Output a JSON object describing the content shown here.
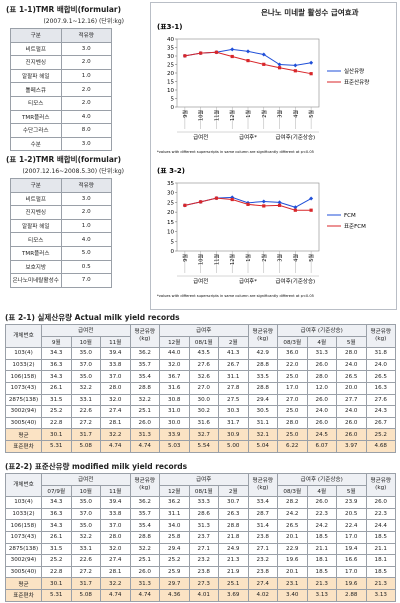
{
  "formula_tables": [
    {
      "title": "(표 1-1)TMR 배합비(formular)",
      "subtitle": "(2007.9.1~12.16) (단위:kg)",
      "header": [
        "구분",
        "적유량"
      ],
      "rows": [
        [
          "비트펄프",
          "3.0"
        ],
        [
          "진지벤싱",
          "2.0"
        ],
        [
          "알팔파 헤일",
          "1.0"
        ],
        [
          "톨페스큐",
          "2.0"
        ],
        [
          "티모스",
          "2.0"
        ],
        [
          "TMR플러스",
          "4.0"
        ],
        [
          "수단그라스",
          "8.0"
        ],
        [
          "수분",
          "3.0"
        ]
      ]
    },
    {
      "title": "(표 1-2)TMR 배합비(formular)",
      "subtitle": "(2007.12.16~2008.5.30) (단위:kg)",
      "header": [
        "구분",
        "적유량"
      ],
      "rows": [
        [
          "비트펄프",
          "3.0"
        ],
        [
          "진지벤싱",
          "2.0"
        ],
        [
          "알팔파 헤일",
          "1.0"
        ],
        [
          "티모스",
          "4.0"
        ],
        [
          "TMR플러스",
          "5.0"
        ],
        [
          "보호지방",
          "0.5"
        ],
        [
          "은나노미네랄활성수",
          "7.0"
        ]
      ]
    }
  ],
  "panel_title": "은나노 미네랄 활성수 급여효과",
  "chart_data": [
    {
      "type": "line",
      "title": "(표3-1)",
      "categories": [
        "9월",
        "10월",
        "11월",
        "12월",
        "1월",
        "2월",
        "3월",
        "4월",
        "5월"
      ],
      "groups": [
        "급여전",
        "급여후*",
        "급여후(기준상승)"
      ],
      "footnote": "*values with different superscripts in same column are significantly different at p<0.05",
      "ylim": [
        0,
        40
      ],
      "yticks": [
        0,
        5,
        10,
        15,
        20,
        25,
        30,
        35,
        40
      ],
      "series": [
        {
          "name": "실산유량",
          "color": "#1f4fd8",
          "values": [
            30.1,
            31.7,
            32.2,
            33.9,
            32.7,
            30.9,
            25.0,
            24.5,
            26.0
          ]
        },
        {
          "name": "표준산유량",
          "color": "#d8262a",
          "values": [
            30.1,
            31.7,
            32.2,
            29.7,
            27.3,
            25.1,
            23.1,
            21.3,
            19.6
          ]
        }
      ]
    },
    {
      "type": "line",
      "title": "(표 3-2)",
      "categories": [
        "9월",
        "10월",
        "11월",
        "12월",
        "1월",
        "2월",
        "3월",
        "4월",
        "5월"
      ],
      "groups": [
        "급여전",
        "급여후*",
        "급여후(기준상승)"
      ],
      "footnote": "*values with different superscripts in same column are significantly different at p<0.05",
      "ylim": [
        0,
        35
      ],
      "yticks": [
        0,
        5,
        10,
        15,
        20,
        25,
        30,
        35
      ],
      "series": [
        {
          "name": "FCM",
          "color": "#1f4fd8",
          "values": [
            23.5,
            25.3,
            27.2,
            27.6,
            24.8,
            25.5,
            25.0,
            22.5,
            27.0
          ]
        },
        {
          "name": "표준FCM",
          "color": "#d8262a",
          "values": [
            23.5,
            25.3,
            27.2,
            26.5,
            24.0,
            23.2,
            23.5,
            21.0,
            21.0
          ]
        }
      ]
    }
  ],
  "yield_tables": [
    {
      "title": "(표 2-1) 실제산유량 Actual milk yield records",
      "group_header": [
        "개체번호",
        "급여전",
        "평균유량 (kg)",
        "급여후",
        "평균유량 (kg)",
        "급여후 (기준상승)",
        "평균유량 (kg)"
      ],
      "month_header": [
        "9월",
        "10월",
        "11월",
        "12월",
        "08/1월",
        "2월",
        "08/3월",
        "4월",
        "5월"
      ],
      "rows": [
        [
          "103(4)",
          "34.3",
          "35.0",
          "39.4",
          "36.2",
          "44.0",
          "43.5",
          "41.3",
          "42.9",
          "36.0",
          "31.3",
          "28.0",
          "31.8"
        ],
        [
          "1033(2)",
          "36.3",
          "37.0",
          "33.8",
          "35.7",
          "32.0",
          "27.6",
          "26.7",
          "28.8",
          "22.0",
          "26.0",
          "24.0",
          "24.0"
        ],
        [
          "106(158)",
          "34.3",
          "35.0",
          "37.0",
          "35.4",
          "36.7",
          "32.6",
          "31.1",
          "33.5",
          "25.0",
          "28.0",
          "26.5",
          "26.5"
        ],
        [
          "1073(43)",
          "26.1",
          "32.2",
          "28.0",
          "28.8",
          "31.6",
          "27.0",
          "27.8",
          "28.8",
          "17.0",
          "12.0",
          "20.0",
          "16.3"
        ],
        [
          "2875(138)",
          "31.5",
          "33.1",
          "32.0",
          "32.2",
          "30.8",
          "30.0",
          "27.5",
          "29.4",
          "27.0",
          "26.0",
          "27.7",
          "27.6"
        ],
        [
          "3002(94)",
          "25.2",
          "22.6",
          "27.4",
          "25.1",
          "31.0",
          "30.2",
          "30.3",
          "30.5",
          "25.0",
          "24.0",
          "24.0",
          "24.3"
        ],
        [
          "3005(40)",
          "22.8",
          "27.2",
          "28.1",
          "26.0",
          "30.0",
          "31.6",
          "31.7",
          "31.1",
          "28.0",
          "26.0",
          "26.0",
          "26.7"
        ],
        [
          "평균",
          "30.1",
          "31.7",
          "32.2",
          "31.3",
          "33.9",
          "32.7",
          "30.9",
          "32.1",
          "25.0",
          "24.5",
          "26.0",
          "25.2"
        ],
        [
          "표준편차",
          "5.31",
          "5.08",
          "4.74",
          "4.74",
          "5.03",
          "5.54",
          "5.00",
          "5.04",
          "6.22",
          "6.07",
          "3.97",
          "4.68"
        ]
      ]
    },
    {
      "title": "(표2-2) 표준산유량 modified milk yield records",
      "group_header": [
        "개체번호",
        "급여전",
        "평균유량 (kg)",
        "급여후",
        "평균유량 (kg)",
        "급여후 (기준상승)",
        "평균유량 (kg)"
      ],
      "month_header": [
        "07/9월",
        "10월",
        "11월",
        "12월",
        "08/1월",
        "2월",
        "08/3월",
        "4월",
        "5월"
      ],
      "rows": [
        [
          "103(4)",
          "34.3",
          "35.0",
          "39.4",
          "36.2",
          "36.2",
          "33.3",
          "30.7",
          "33.4",
          "28.2",
          "26.0",
          "23.9",
          "26.0"
        ],
        [
          "1033(2)",
          "36.3",
          "37.0",
          "33.8",
          "35.7",
          "31.1",
          "28.6",
          "26.3",
          "28.7",
          "24.2",
          "22.3",
          "20.5",
          "22.3"
        ],
        [
          "106(158)",
          "34.3",
          "35.0",
          "37.0",
          "35.4",
          "34.0",
          "31.3",
          "28.8",
          "31.4",
          "26.5",
          "24.2",
          "22.4",
          "24.4"
        ],
        [
          "1073(43)",
          "26.1",
          "32.2",
          "28.0",
          "28.8",
          "25.8",
          "23.7",
          "21.8",
          "23.8",
          "20.1",
          "18.5",
          "17.0",
          "18.5"
        ],
        [
          "2875(138)",
          "31.5",
          "33.1",
          "32.0",
          "32.2",
          "29.4",
          "27.1",
          "24.9",
          "27.1",
          "22.9",
          "21.1",
          "19.4",
          "21.1"
        ],
        [
          "3002(94)",
          "25.2",
          "22.6",
          "27.4",
          "25.1",
          "25.2",
          "23.2",
          "21.3",
          "23.2",
          "19.6",
          "18.1",
          "16.6",
          "18.1"
        ],
        [
          "3005(40)",
          "22.8",
          "27.2",
          "28.1",
          "26.0",
          "25.9",
          "23.8",
          "21.9",
          "23.8",
          "20.1",
          "18.5",
          "17.0",
          "18.5"
        ],
        [
          "평균",
          "30.1",
          "31.7",
          "32.2",
          "31.3",
          "29.7",
          "27.3",
          "25.1",
          "27.4",
          "23.1",
          "21.3",
          "19.6",
          "21.3"
        ],
        [
          "표준편차",
          "5.31",
          "5.08",
          "4.74",
          "4.74",
          "4.36",
          "4.01",
          "3.69",
          "4.02",
          "3.40",
          "3.13",
          "2.88",
          "3.13"
        ]
      ]
    }
  ]
}
